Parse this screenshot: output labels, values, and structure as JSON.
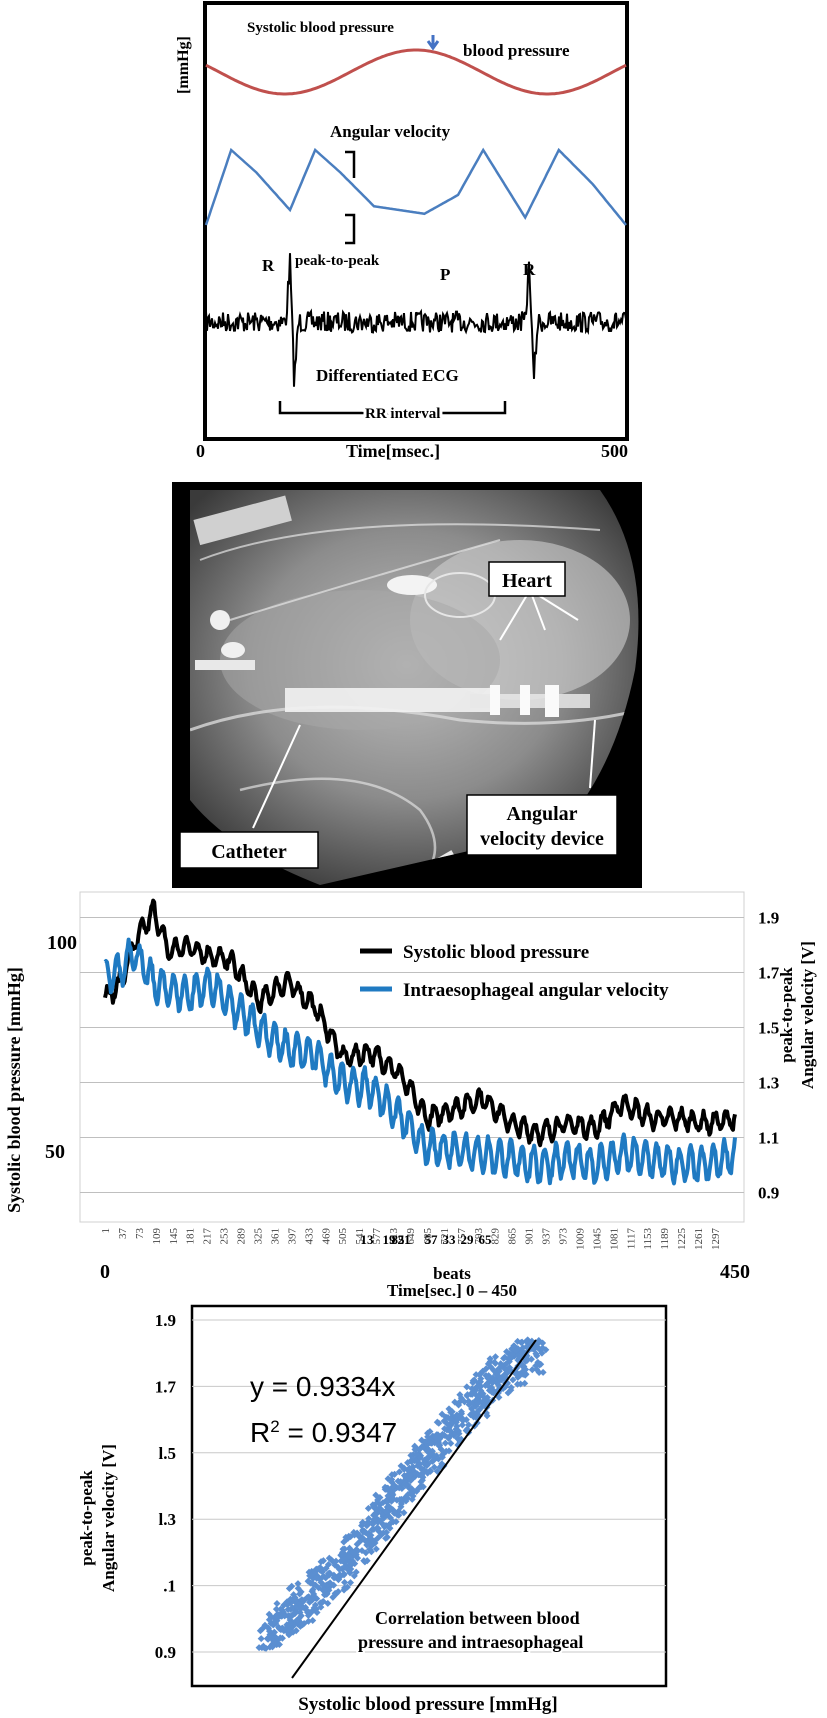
{
  "panel1": {
    "y_unit": "[mmHg]",
    "systolic_label": "Systolic blood pressure",
    "bp_label": "blood pressure",
    "angular_label": "Angular velocity",
    "peak_label": "peak-to-peak",
    "r_label": "R",
    "p_label": "P",
    "r2_label": "R",
    "ecg_label": "Differentiated ECG",
    "rr_label": "RR interval",
    "x_start": "0",
    "x_end": "500",
    "x_label": "Time[msec.]",
    "colors": {
      "bp": "#c0504d",
      "angular": "#4a7ebf",
      "ecg": "#000000",
      "arrow": "#4472c4"
    }
  },
  "panel2": {
    "heart_label": "Heart",
    "catheter_label": "Catheter",
    "device_label_line1": "Angular",
    "device_label_line2": "velocity device"
  },
  "panel3": {
    "y_left_ticks": [
      "100",
      "50"
    ],
    "y_right_ticks": [
      "1.9",
      "1.7",
      "1.5",
      "1.3",
      "1.1",
      "0.9"
    ],
    "y_left_label": "Systolic blood pressure [mmHg]",
    "y_right_label_line1": "peak-to-peak",
    "y_right_label_line2": "Angular velocity [V]",
    "x_label_line1": "beats",
    "x_label_line2": "Time[sec.] 0 – 450",
    "x_start": "0",
    "x_end": "450",
    "x_ticks": [
      "1",
      "37",
      "73",
      "109",
      "145",
      "181",
      "217",
      "253",
      "289",
      "325",
      "361",
      "397",
      "433",
      "469",
      "505",
      "541",
      "577",
      "613",
      "649",
      "685",
      "721",
      "757",
      "793",
      "829",
      "865",
      "901",
      "937",
      "973",
      "1009",
      "1045",
      "1081",
      "1117",
      "1153",
      "1189",
      "1225",
      "1261",
      "1297"
    ],
    "x_tick_overlap_marks": [
      "13",
      "19",
      "85",
      "21",
      "57",
      "33",
      "29",
      "65"
    ],
    "legend": [
      "Systolic blood pressure",
      "Intraesophageal angular velocity"
    ],
    "colors": {
      "bp": "#000000",
      "angular": "#1f7ac2",
      "grid": "#bfbfbf"
    }
  },
  "panel4": {
    "equation": "y = 0.9334x",
    "r_squared_prefix": "R",
    "r_squared_sup": "2",
    "r_squared_value": " = 0.9347",
    "y_ticks": [
      "1.9",
      "1.7",
      "l.5",
      "l.3",
      ".1",
      "0.9"
    ],
    "y_label_line1": "peak-to-peak",
    "y_label_line2": "Angular velocity [V]",
    "x_label": "Systolic blood pressure [mmHg]",
    "caption_line1": "Correlation between blood",
    "caption_line2": "pressure and intraesophageal",
    "colors": {
      "points": "#5b8fd1",
      "fit": "#000000",
      "grid": "#c8c8c8"
    }
  },
  "chart_data": [
    {
      "type": "line",
      "title": "",
      "xlabel": "Time[msec.]",
      "ylabel": "[mmHg]",
      "xlim": [
        0,
        500
      ],
      "series": [
        {
          "name": "blood pressure",
          "x": [
            0,
            50,
            100,
            150,
            200,
            250,
            300,
            350,
            400,
            450,
            500
          ],
          "values": [
            0.55,
            0.4,
            0.15,
            0.05,
            0.3,
            0.8,
            1.0,
            0.75,
            0.2,
            0.1,
            0.55
          ]
        },
        {
          "name": "Angular velocity",
          "x": [
            0,
            30,
            60,
            100,
            130,
            160,
            200,
            260,
            300,
            330,
            380,
            420,
            460,
            500
          ],
          "values": [
            0.0,
            1.0,
            0.7,
            0.2,
            1.0,
            0.7,
            0.25,
            0.15,
            0.4,
            1.0,
            0.1,
            1.0,
            0.55,
            0.0
          ]
        },
        {
          "name": "Differentiated ECG",
          "x": [
            0,
            95,
            100,
            105,
            110,
            380,
            385,
            390,
            395,
            500
          ],
          "values": [
            0.0,
            0.0,
            1.0,
            -1.0,
            0.0,
            0.0,
            1.0,
            -1.0,
            0.0,
            0.0
          ]
        }
      ]
    },
    {
      "type": "line",
      "title": "",
      "xlabel": "beats",
      "ylabel": "Systolic blood pressure [mmHg]",
      "y2label": "peak-to-peak Angular velocity [V]",
      "xlim": [
        0,
        450
      ],
      "ylim": [
        40,
        105
      ],
      "y2lim": [
        0.8,
        2.0
      ],
      "grid": true,
      "legend": "top-right",
      "series": [
        {
          "name": "Systolic blood pressure",
          "axis": "left",
          "x": [
            0,
            10,
            20,
            35,
            45,
            60,
            75,
            90,
            110,
            130,
            150,
            170,
            190,
            210,
            230,
            250,
            270,
            290,
            310,
            330,
            350,
            370,
            390,
            410,
            430,
            450
          ],
          "values": [
            84,
            86,
            94,
            101,
            93,
            94,
            92,
            91,
            83,
            87,
            82,
            72,
            73,
            69,
            60,
            62,
            64,
            59,
            57,
            59,
            58,
            63,
            60,
            60,
            59,
            60
          ]
        },
        {
          "name": "Intraesophageal angular velocity",
          "axis": "right",
          "x": [
            0,
            10,
            20,
            35,
            45,
            60,
            75,
            90,
            110,
            130,
            150,
            170,
            190,
            210,
            230,
            250,
            270,
            290,
            310,
            330,
            350,
            370,
            390,
            410,
            430,
            450
          ],
          "values": [
            1.68,
            1.7,
            1.78,
            1.66,
            1.64,
            1.62,
            1.66,
            1.58,
            1.5,
            1.42,
            1.4,
            1.3,
            1.28,
            1.18,
            1.06,
            1.06,
            1.04,
            1.02,
            1.0,
            1.02,
            1.0,
            1.04,
            1.02,
            1.0,
            1.0,
            1.04
          ]
        }
      ]
    },
    {
      "type": "scatter",
      "title": "",
      "xlabel": "Systolic blood pressure [mmHg]",
      "ylabel": "peak-to-peak Angular velocity [V]",
      "ylim": [
        0.9,
        1.9
      ],
      "grid": true,
      "trendline": {
        "slope": 0.9334,
        "r_squared": 0.9347
      },
      "points_cluster": [
        {
          "x_frac": 0.15,
          "y": 0.92
        },
        {
          "x_frac": 0.2,
          "y": 1.0
        },
        {
          "x_frac": 0.25,
          "y": 1.05
        },
        {
          "x_frac": 0.3,
          "y": 1.1
        },
        {
          "x_frac": 0.35,
          "y": 1.15
        },
        {
          "x_frac": 0.45,
          "y": 1.3
        },
        {
          "x_frac": 0.55,
          "y": 1.45
        },
        {
          "x_frac": 0.65,
          "y": 1.6
        },
        {
          "x_frac": 0.75,
          "y": 1.72
        },
        {
          "x_frac": 0.85,
          "y": 1.8
        }
      ]
    }
  ]
}
